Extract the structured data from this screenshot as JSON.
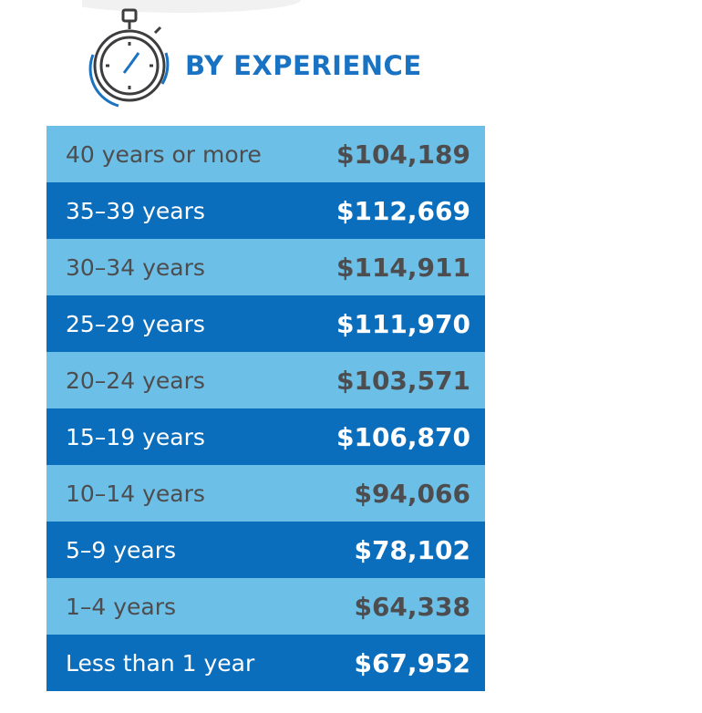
{
  "header": {
    "title": "BY EXPERIENCE"
  },
  "table": {
    "rows": [
      [
        "40 years or more",
        "$104,189"
      ],
      [
        "35–39 years",
        "$112,669"
      ],
      [
        "30–34 years",
        "$114,911"
      ],
      [
        "25–29 years",
        "$111,970"
      ],
      [
        "20–24 years",
        "$103,571"
      ],
      [
        "15–19 years",
        "$106,870"
      ],
      [
        "10–14 years",
        "$94,066"
      ],
      [
        "5–9 years",
        "$78,102"
      ],
      [
        "1–4 years",
        "$64,338"
      ],
      [
        "Less than 1 year",
        "$67,952"
      ]
    ]
  }
}
